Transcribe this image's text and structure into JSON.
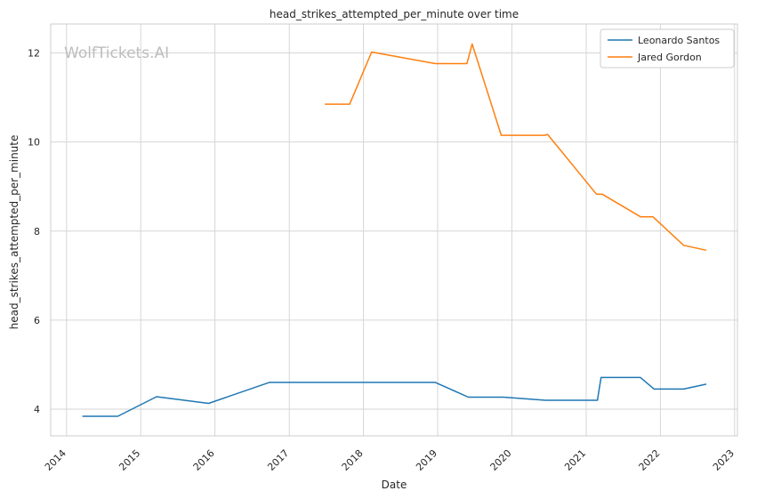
{
  "chart_data": {
    "type": "line",
    "title": "head_strikes_attempted_per_minute over time",
    "xlabel": "Date",
    "ylabel": "head_strikes_attempted_per_minute",
    "watermark": "WolfTickets.AI",
    "x_ticks": [
      "2014",
      "2015",
      "2016",
      "2017",
      "2018",
      "2019",
      "2020",
      "2021",
      "2022",
      "2023"
    ],
    "y_ticks": [
      "4",
      "6",
      "8",
      "10",
      "12"
    ],
    "xlim": [
      "2013-10-15",
      "2023-01-15"
    ],
    "ylim": [
      3.4,
      12.65
    ],
    "grid": true,
    "legend_position": "top-right",
    "series": [
      {
        "name": "Leonardo Santos",
        "color": "#1f77b4",
        "points": [
          [
            "2014-03-20",
            3.84
          ],
          [
            "2014-09-10",
            3.84
          ],
          [
            "2015-03-20",
            4.28
          ],
          [
            "2015-12-01",
            4.13
          ],
          [
            "2016-09-25",
            4.6
          ],
          [
            "2018-12-20",
            4.6
          ],
          [
            "2019-06-01",
            4.27
          ],
          [
            "2019-11-20",
            4.27
          ],
          [
            "2020-06-15",
            4.2
          ],
          [
            "2021-02-25",
            4.2
          ],
          [
            "2021-03-15",
            4.71
          ],
          [
            "2021-09-25",
            4.71
          ],
          [
            "2021-12-01",
            4.45
          ],
          [
            "2022-04-25",
            4.45
          ],
          [
            "2022-08-15",
            4.56
          ]
        ]
      },
      {
        "name": "Jared Gordon",
        "color": "#ff7f0e",
        "points": [
          [
            "2017-06-25",
            10.85
          ],
          [
            "2017-10-25",
            10.85
          ],
          [
            "2018-02-10",
            12.02
          ],
          [
            "2018-12-20",
            11.76
          ],
          [
            "2019-05-25",
            11.76
          ],
          [
            "2019-06-20",
            12.2
          ],
          [
            "2019-11-10",
            10.15
          ],
          [
            "2020-06-10",
            10.15
          ],
          [
            "2020-06-25",
            10.17
          ],
          [
            "2021-02-20",
            8.83
          ],
          [
            "2021-03-20",
            8.83
          ],
          [
            "2021-09-25",
            8.32
          ],
          [
            "2021-11-25",
            8.32
          ],
          [
            "2022-04-25",
            7.68
          ],
          [
            "2022-08-15",
            7.57
          ]
        ]
      }
    ]
  }
}
